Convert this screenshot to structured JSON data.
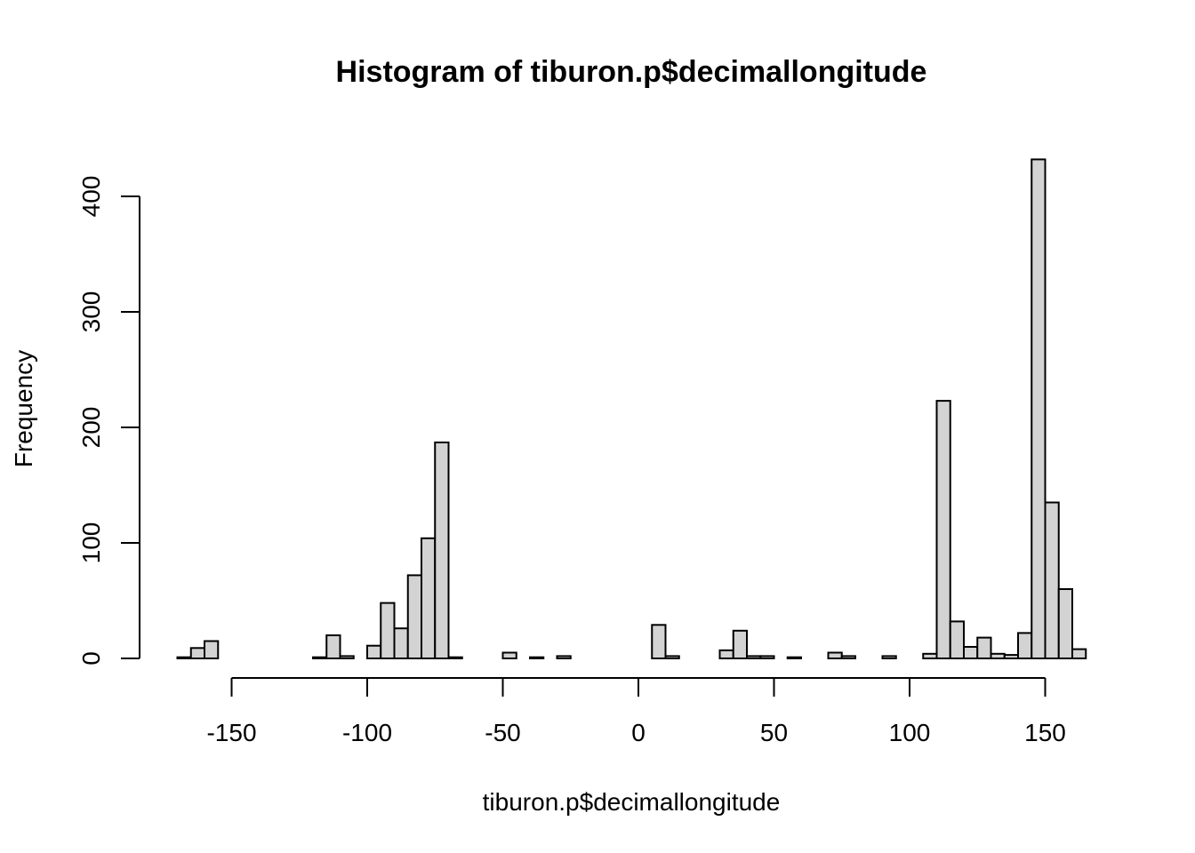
{
  "chart_data": {
    "type": "bar",
    "title": "Histogram of tiburon.p$decimallongitude",
    "xlabel": "tiburon.p$decimallongitude",
    "ylabel": "Frequency",
    "bin_width": 5,
    "xlim": [
      -170,
      165
    ],
    "ylim": [
      0,
      435
    ],
    "x_ticks": [
      -150,
      -100,
      -50,
      0,
      50,
      100,
      150
    ],
    "y_ticks": [
      0,
      100,
      200,
      300,
      400
    ],
    "grid": false,
    "bins": [
      {
        "start": -170,
        "end": -165,
        "value": 1
      },
      {
        "start": -165,
        "end": -160,
        "value": 9
      },
      {
        "start": -160,
        "end": -155,
        "value": 15
      },
      {
        "start": -155,
        "end": -150,
        "value": 0
      },
      {
        "start": -150,
        "end": -145,
        "value": 0
      },
      {
        "start": -145,
        "end": -140,
        "value": 0
      },
      {
        "start": -140,
        "end": -135,
        "value": 0
      },
      {
        "start": -135,
        "end": -130,
        "value": 0
      },
      {
        "start": -130,
        "end": -125,
        "value": 0
      },
      {
        "start": -125,
        "end": -120,
        "value": 0
      },
      {
        "start": -120,
        "end": -115,
        "value": 1
      },
      {
        "start": -115,
        "end": -110,
        "value": 20
      },
      {
        "start": -110,
        "end": -105,
        "value": 2
      },
      {
        "start": -105,
        "end": -100,
        "value": 0
      },
      {
        "start": -100,
        "end": -95,
        "value": 11
      },
      {
        "start": -95,
        "end": -90,
        "value": 48
      },
      {
        "start": -90,
        "end": -85,
        "value": 26
      },
      {
        "start": -85,
        "end": -80,
        "value": 72
      },
      {
        "start": -80,
        "end": -75,
        "value": 104
      },
      {
        "start": -75,
        "end": -70,
        "value": 187
      },
      {
        "start": -70,
        "end": -65,
        "value": 1
      },
      {
        "start": -65,
        "end": -60,
        "value": 0
      },
      {
        "start": -60,
        "end": -55,
        "value": 0
      },
      {
        "start": -55,
        "end": -50,
        "value": 0
      },
      {
        "start": -50,
        "end": -45,
        "value": 5
      },
      {
        "start": -45,
        "end": -40,
        "value": 0
      },
      {
        "start": -40,
        "end": -35,
        "value": 1
      },
      {
        "start": -35,
        "end": -30,
        "value": 0
      },
      {
        "start": -30,
        "end": -25,
        "value": 2
      },
      {
        "start": -25,
        "end": -20,
        "value": 0
      },
      {
        "start": -20,
        "end": -15,
        "value": 0
      },
      {
        "start": -15,
        "end": -10,
        "value": 0
      },
      {
        "start": -10,
        "end": -5,
        "value": 0
      },
      {
        "start": -5,
        "end": 0,
        "value": 0
      },
      {
        "start": 0,
        "end": 5,
        "value": 0
      },
      {
        "start": 5,
        "end": 10,
        "value": 29
      },
      {
        "start": 10,
        "end": 15,
        "value": 2
      },
      {
        "start": 15,
        "end": 20,
        "value": 0
      },
      {
        "start": 20,
        "end": 25,
        "value": 0
      },
      {
        "start": 25,
        "end": 30,
        "value": 0
      },
      {
        "start": 30,
        "end": 35,
        "value": 7
      },
      {
        "start": 35,
        "end": 40,
        "value": 24
      },
      {
        "start": 40,
        "end": 45,
        "value": 2
      },
      {
        "start": 45,
        "end": 50,
        "value": 2
      },
      {
        "start": 50,
        "end": 55,
        "value": 0
      },
      {
        "start": 55,
        "end": 60,
        "value": 1
      },
      {
        "start": 60,
        "end": 65,
        "value": 0
      },
      {
        "start": 65,
        "end": 70,
        "value": 0
      },
      {
        "start": 70,
        "end": 75,
        "value": 5
      },
      {
        "start": 75,
        "end": 80,
        "value": 2
      },
      {
        "start": 80,
        "end": 85,
        "value": 0
      },
      {
        "start": 85,
        "end": 90,
        "value": 0
      },
      {
        "start": 90,
        "end": 95,
        "value": 2
      },
      {
        "start": 95,
        "end": 100,
        "value": 0
      },
      {
        "start": 100,
        "end": 105,
        "value": 0
      },
      {
        "start": 105,
        "end": 110,
        "value": 4
      },
      {
        "start": 110,
        "end": 115,
        "value": 223
      },
      {
        "start": 115,
        "end": 120,
        "value": 32
      },
      {
        "start": 120,
        "end": 125,
        "value": 10
      },
      {
        "start": 125,
        "end": 130,
        "value": 18
      },
      {
        "start": 130,
        "end": 135,
        "value": 4
      },
      {
        "start": 135,
        "end": 140,
        "value": 3
      },
      {
        "start": 140,
        "end": 145,
        "value": 22
      },
      {
        "start": 145,
        "end": 150,
        "value": 432
      },
      {
        "start": 150,
        "end": 155,
        "value": 135
      },
      {
        "start": 155,
        "end": 160,
        "value": 60
      },
      {
        "start": 160,
        "end": 165,
        "value": 8
      }
    ]
  }
}
